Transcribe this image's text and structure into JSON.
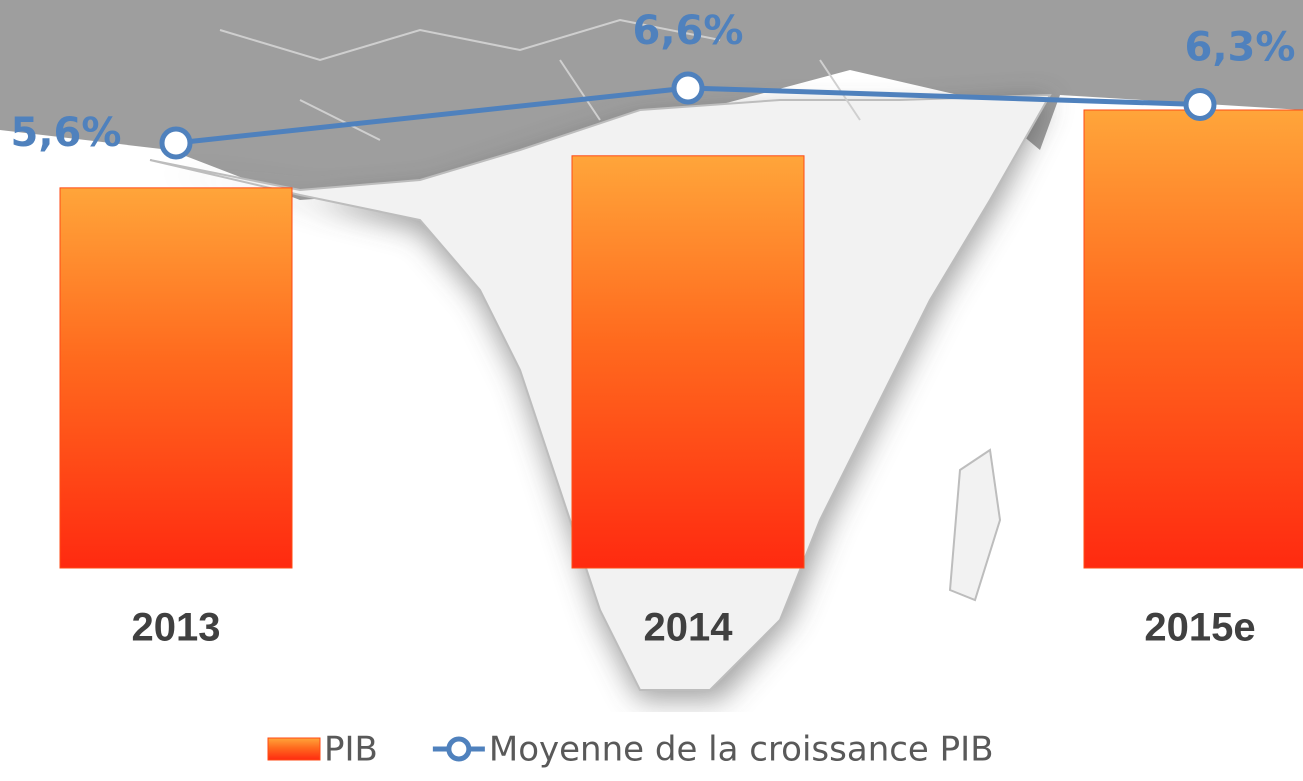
{
  "chart_data": {
    "type": "bar",
    "categories": [
      "2013",
      "2014",
      "2015e"
    ],
    "series": [
      {
        "name": "PIB",
        "color": "#ff4a14",
        "values": [
          83,
          90,
          100
        ]
      },
      {
        "name": "Moyenne de la croissance PIB",
        "type": "line",
        "axis": "y2",
        "color": "#4f81bd",
        "values": [
          5.6,
          6.6,
          6.3
        ],
        "value_labels": [
          "5,6%",
          "6,6%",
          "6,3%"
        ]
      }
    ],
    "ylim": [
      0,
      100
    ],
    "y2lim": [
      5,
      7
    ],
    "legend": "bottom"
  }
}
